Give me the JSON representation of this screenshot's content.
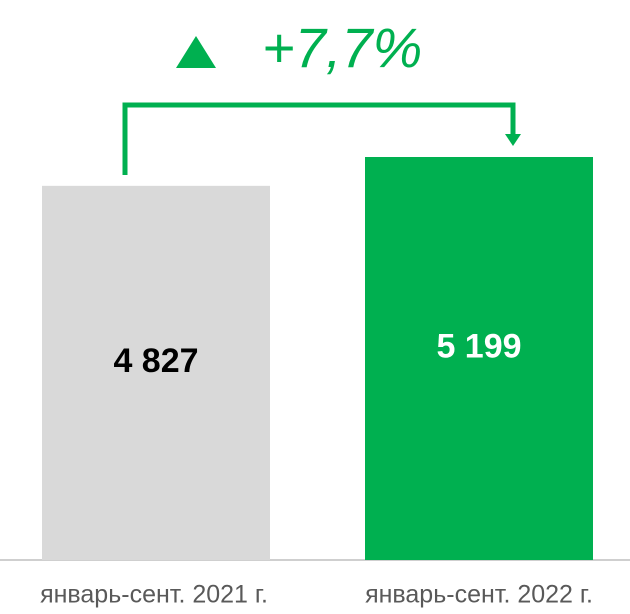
{
  "chart_data": {
    "type": "bar",
    "categories": [
      "январь-сент. 2021 г.",
      "январь-сент. 2022 г."
    ],
    "values": [
      4827,
      5199
    ],
    "value_labels": [
      "4 827",
      "5 199"
    ],
    "colors": [
      "#d9d9d9",
      "#00b050"
    ],
    "annotation": "+7,7%"
  }
}
